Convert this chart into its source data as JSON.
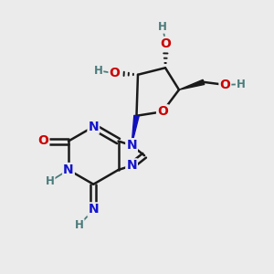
{
  "bg_color": "#ebebeb",
  "atom_colors": {
    "C": "#1a1a1a",
    "N": "#1414cc",
    "O": "#cc0000",
    "H": "#4a7a7a"
  },
  "bond_color": "#1a1a1a",
  "figsize": [
    3.0,
    3.0
  ],
  "dpi": 100,
  "xlim": [
    0,
    10
  ],
  "ylim": [
    0,
    10
  ]
}
